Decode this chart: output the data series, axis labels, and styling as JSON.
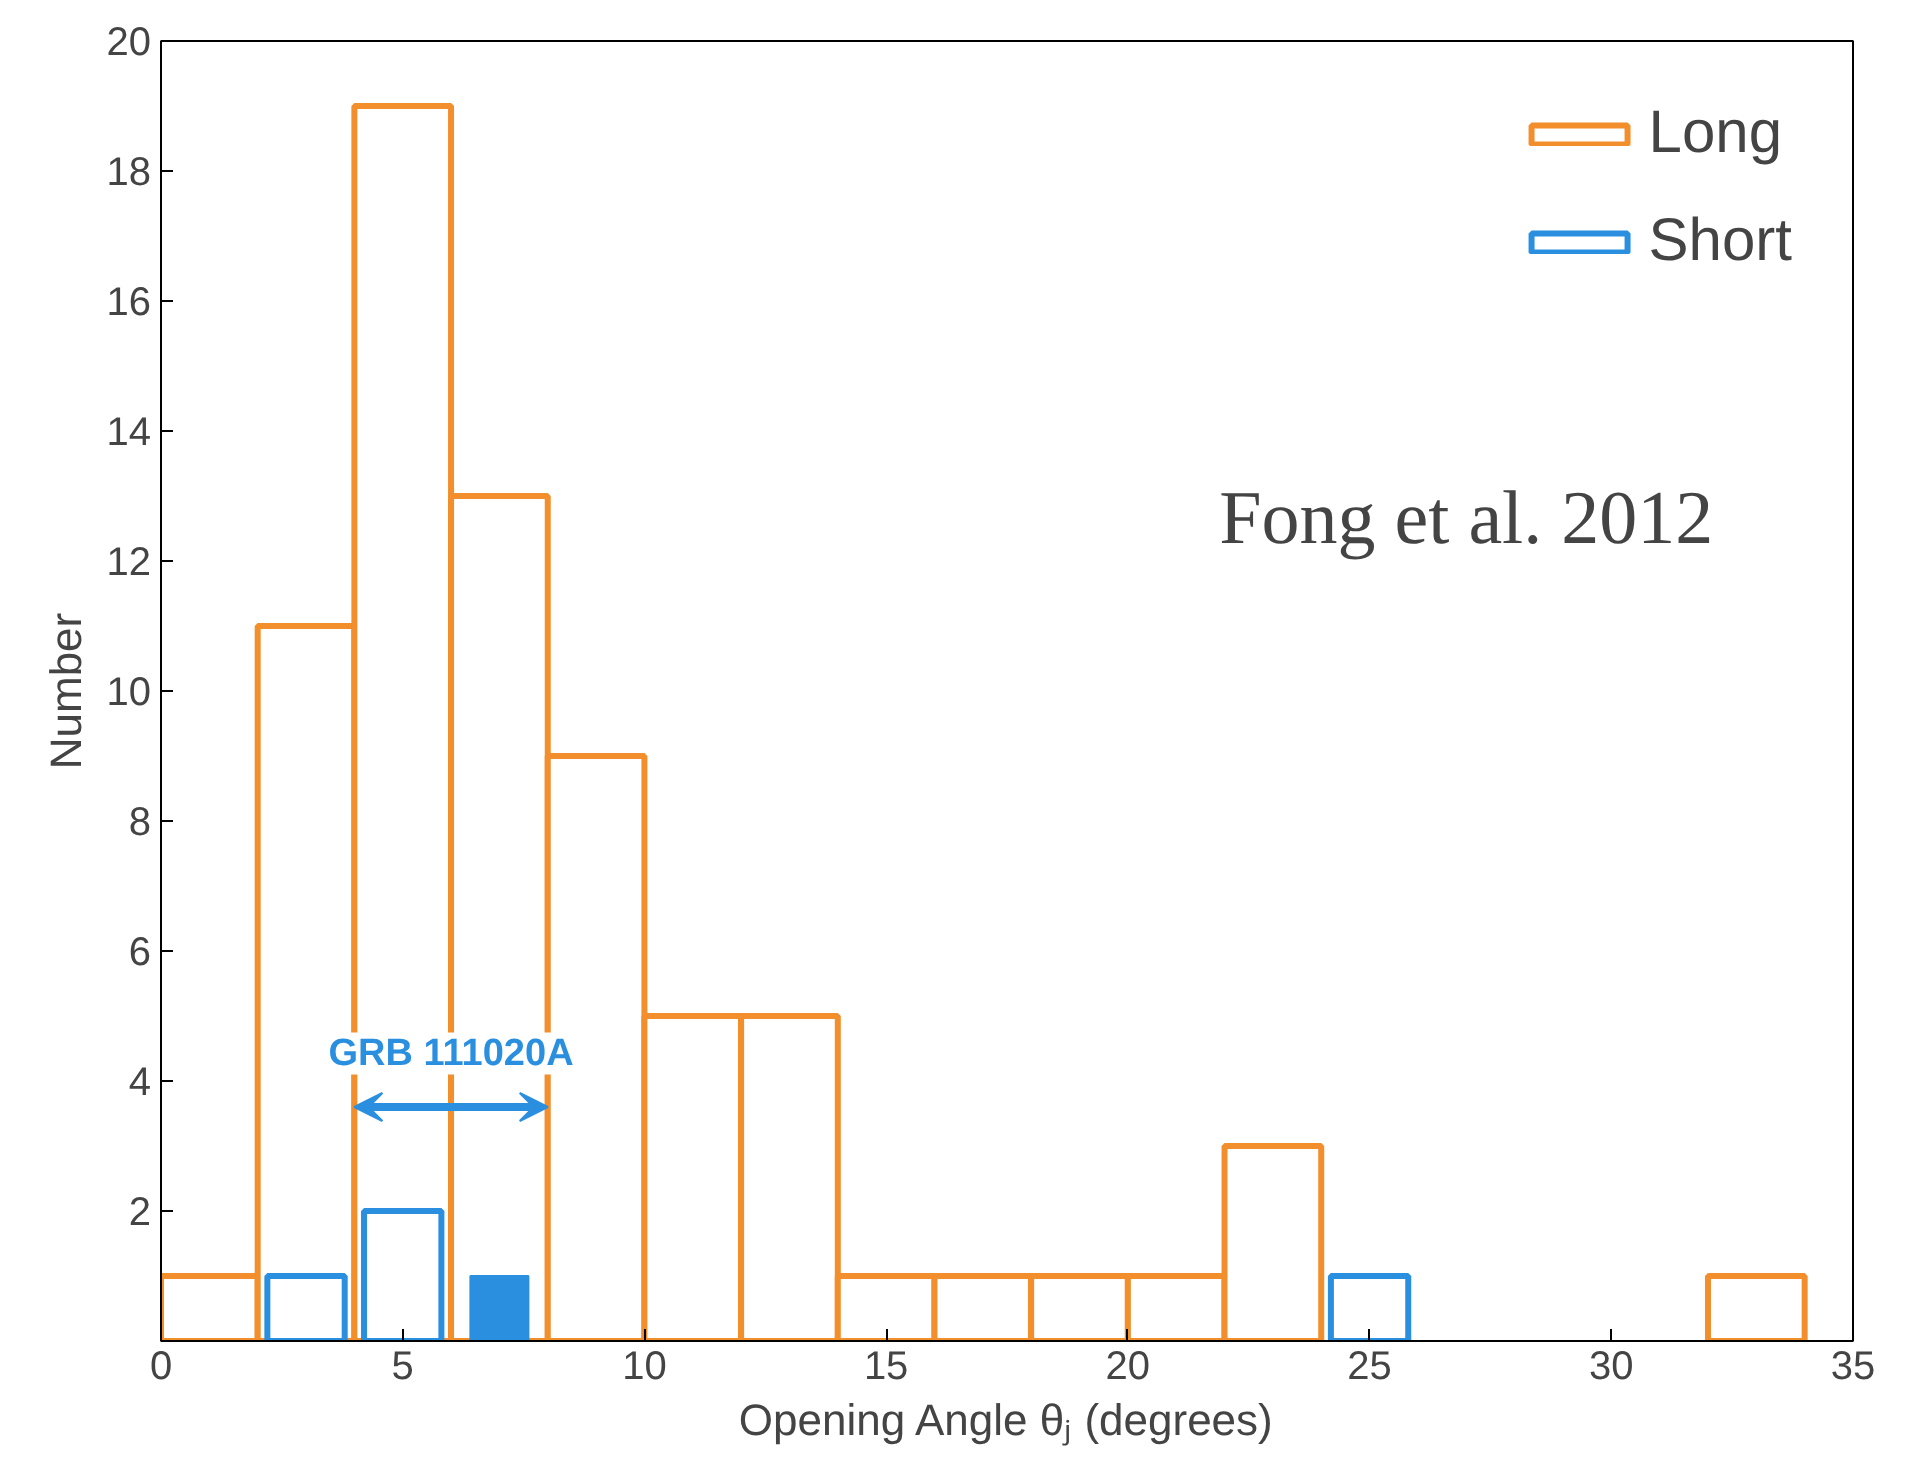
{
  "chart_data": {
    "type": "histogram",
    "xlabel": "Opening Angle θⱼ (degrees)",
    "ylabel": "Number",
    "bins": [
      0,
      2,
      4,
      6,
      8,
      10,
      12,
      14,
      16,
      18,
      20,
      22,
      24,
      26,
      28,
      30,
      32,
      34
    ],
    "series": [
      {
        "name": "Long",
        "color": "#f28e2b",
        "values": [
          1,
          11,
          19,
          13,
          9,
          5,
          5,
          1,
          1,
          1,
          1,
          3,
          0,
          0,
          0,
          0,
          1
        ]
      },
      {
        "name": "Short",
        "color": "#2b8fe0",
        "values": [
          0,
          1,
          2,
          0,
          0,
          0,
          0,
          0,
          0,
          0,
          0,
          0,
          1,
          0,
          0,
          0,
          0
        ]
      },
      {
        "color": "#2b8fe0",
        "values": [
          0,
          0,
          0,
          1,
          0,
          0,
          0,
          0,
          0,
          0,
          0,
          0,
          0,
          0,
          0,
          0,
          0
        ]
      }
    ],
    "xlim": [
      0,
      35
    ],
    "xticks": [
      0,
      5,
      10,
      15,
      20,
      25,
      30,
      35
    ],
    "ylim": [
      0,
      20
    ],
    "yticks": [
      {
        "value": 0,
        "label": null
      },
      2,
      4,
      6,
      8,
      10,
      12,
      14,
      16,
      18,
      20
    ],
    "legend": "top right",
    "grid": false,
    "annotations": [
      {
        "text": "GRB 111020A",
        "x": 6,
        "y": 3.6
      },
      "Fong et al. 2012"
    ]
  }
}
